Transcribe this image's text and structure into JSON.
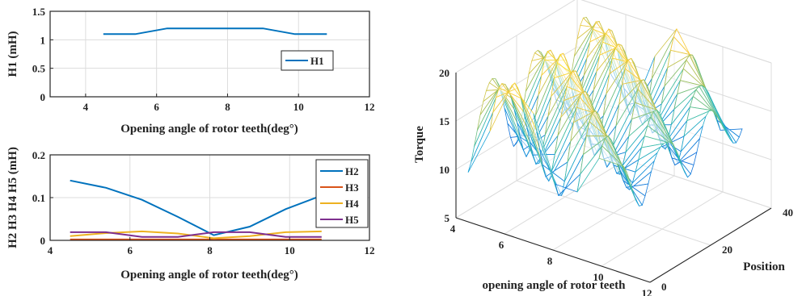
{
  "chart_data": [
    {
      "type": "line",
      "title": "",
      "xlabel": "Opening angle of rotor teeth(deg°)",
      "ylabel": "H1 (mH)",
      "xlim": [
        3,
        12
      ],
      "ylim": [
        0,
        1.5
      ],
      "xticks": [
        "4",
        "6",
        "8",
        "10",
        "12"
      ],
      "yticks": [
        "0",
        "0.5",
        "1",
        "1.5"
      ],
      "grid": true,
      "legend_position": "inside-right",
      "series": [
        {
          "name": "H1",
          "color": "#0072BD",
          "x": [
            4.5,
            5.4,
            6.3,
            7.2,
            8.1,
            9.0,
            9.9,
            10.8
          ],
          "y": [
            1.1,
            1.1,
            1.2,
            1.2,
            1.2,
            1.2,
            1.1,
            1.1
          ]
        }
      ]
    },
    {
      "type": "line",
      "title": "",
      "xlabel": "Opening angle of rotor teeth(deg°)",
      "ylabel": "H2 H3 H4 H5 (mH)",
      "xlim": [
        4,
        12
      ],
      "ylim": [
        0,
        0.2
      ],
      "xticks": [
        "4",
        "6",
        "8",
        "10",
        "12"
      ],
      "yticks": [
        "0",
        "0.1",
        "0.2"
      ],
      "grid": true,
      "legend_position": "top-right",
      "series": [
        {
          "name": "H2",
          "color": "#0072BD",
          "x": [
            4.5,
            5.4,
            6.3,
            7.2,
            8.1,
            9.0,
            9.9,
            10.8
          ],
          "y": [
            0.14,
            0.123,
            0.095,
            0.055,
            0.012,
            0.032,
            0.073,
            0.105
          ]
        },
        {
          "name": "H3",
          "color": "#D95319",
          "x": [
            4.5,
            5.4,
            6.3,
            7.2,
            8.1,
            9.0,
            9.9,
            10.8
          ],
          "y": [
            0.002,
            0.002,
            0.002,
            0.002,
            0.002,
            0.002,
            0.002,
            0.002
          ]
        },
        {
          "name": "H4",
          "color": "#EDB120",
          "x": [
            4.5,
            5.4,
            6.3,
            7.2,
            8.1,
            9.0,
            9.9,
            10.8
          ],
          "y": [
            0.01,
            0.017,
            0.021,
            0.016,
            0.005,
            0.01,
            0.019,
            0.021
          ]
        },
        {
          "name": "H5",
          "color": "#7E2F8E",
          "x": [
            4.5,
            5.4,
            6.3,
            7.2,
            8.1,
            9.0,
            9.9,
            10.8
          ],
          "y": [
            0.019,
            0.019,
            0.008,
            0.008,
            0.019,
            0.019,
            0.008,
            0.008
          ]
        }
      ]
    },
    {
      "type": "surface",
      "title": "",
      "xlabel": "opening angle of rotor teeth",
      "ylabel": "Position",
      "zlabel": "Torque",
      "xlim": [
        4,
        12
      ],
      "ylim": [
        0,
        40
      ],
      "zlim": [
        5,
        20
      ],
      "xticks": [
        "4",
        "6",
        "8",
        "10",
        "12"
      ],
      "yticks": [
        "0",
        "20",
        "40"
      ],
      "zticks": [
        "5",
        "10",
        "15",
        "20"
      ],
      "grid": true,
      "colormap": "parula",
      "x": [
        4.5,
        5.4,
        6.3,
        7.2,
        8.1,
        9.0,
        9.9,
        10.8
      ],
      "y_range": [
        0,
        40
      ],
      "ridge_min": [
        10.1,
        10.2,
        10.3,
        10.4,
        10.5,
        10.6,
        10.7,
        10.8
      ],
      "ridge_max": [
        18.5,
        19.5,
        20.5,
        20.5,
        20.0,
        19.0,
        17.5,
        16.0
      ]
    }
  ]
}
